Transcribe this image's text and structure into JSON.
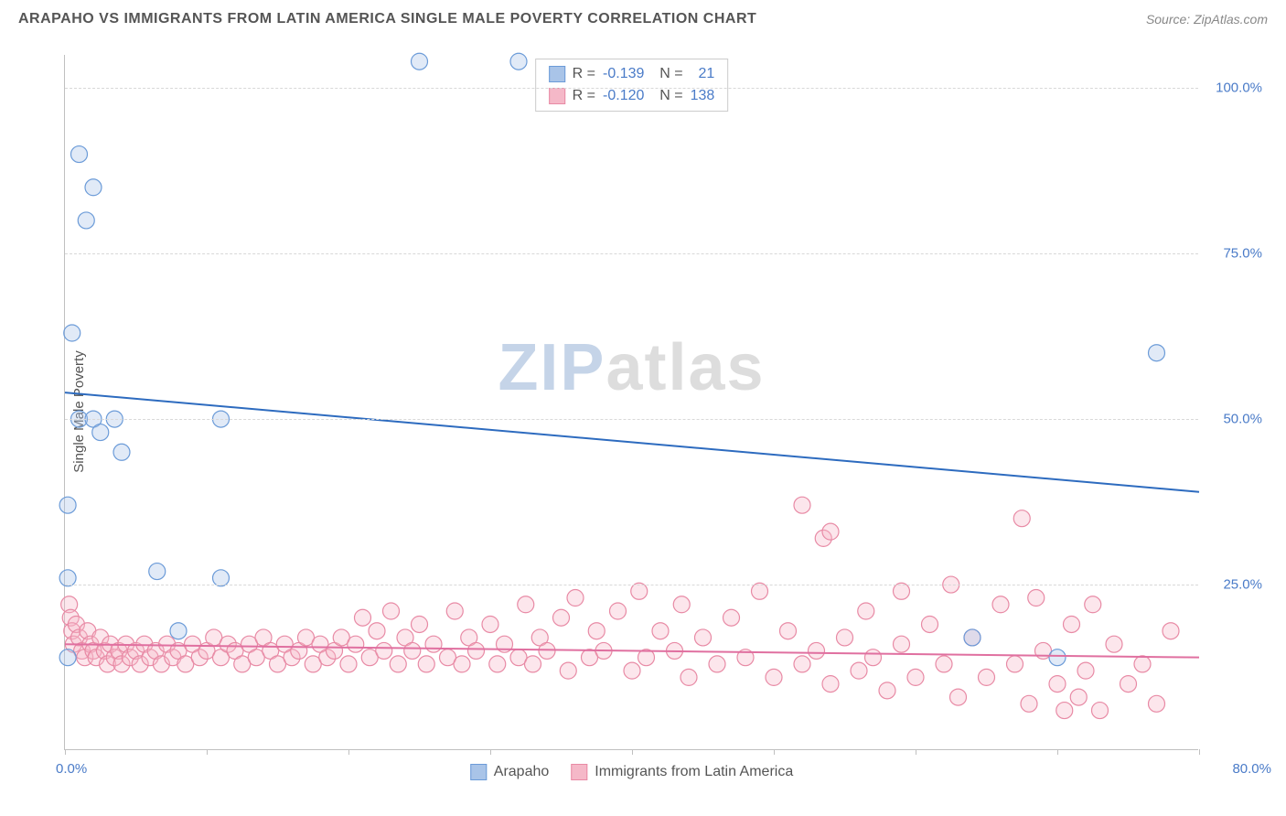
{
  "header": {
    "title": "ARAPAHO VS IMMIGRANTS FROM LATIN AMERICA SINGLE MALE POVERTY CORRELATION CHART",
    "source": "Source: ZipAtlas.com"
  },
  "chart": {
    "type": "scatter",
    "y_axis_label": "Single Male Poverty",
    "watermark_prefix": "ZIP",
    "watermark_suffix": "atlas",
    "background_color": "#ffffff",
    "grid_color": "#d8d8d8",
    "axis_color": "#c0c0c0",
    "tick_label_color": "#4a7bc8",
    "xlim": [
      0,
      80
    ],
    "ylim": [
      0,
      105
    ],
    "x_ticks": [
      0,
      10,
      20,
      30,
      40,
      50,
      60,
      70,
      80
    ],
    "x_tick_labels": {
      "0": "0.0%",
      "80": "80.0%"
    },
    "y_gridlines": [
      25,
      50,
      75,
      100
    ],
    "y_tick_labels": {
      "25": "25.0%",
      "50": "50.0%",
      "75": "75.0%",
      "100": "100.0%"
    },
    "marker_radius": 9,
    "marker_stroke_width": 1.2,
    "marker_fill_opacity": 0.35,
    "trendline_width": 2,
    "series": [
      {
        "name": "Arapaho",
        "fill_color": "#a9c4e8",
        "stroke_color": "#6b9bd8",
        "line_color": "#2d6bbf",
        "R": "-0.139",
        "N": "21",
        "trendline": {
          "x1": 0,
          "y1": 54,
          "x2": 80,
          "y2": 39
        },
        "points": [
          {
            "x": 1.0,
            "y": 90
          },
          {
            "x": 2.0,
            "y": 85
          },
          {
            "x": 1.5,
            "y": 80
          },
          {
            "x": 0.5,
            "y": 63
          },
          {
            "x": 25,
            "y": 104
          },
          {
            "x": 32,
            "y": 104
          },
          {
            "x": 1.0,
            "y": 50
          },
          {
            "x": 2.0,
            "y": 50
          },
          {
            "x": 2.5,
            "y": 48
          },
          {
            "x": 3.5,
            "y": 50
          },
          {
            "x": 4.0,
            "y": 45
          },
          {
            "x": 11,
            "y": 50
          },
          {
            "x": 0.2,
            "y": 37
          },
          {
            "x": 6.5,
            "y": 27
          },
          {
            "x": 11,
            "y": 26
          },
          {
            "x": 0.2,
            "y": 26
          },
          {
            "x": 8,
            "y": 18
          },
          {
            "x": 0.2,
            "y": 14
          },
          {
            "x": 64,
            "y": 17
          },
          {
            "x": 70,
            "y": 14
          },
          {
            "x": 77,
            "y": 60
          }
        ]
      },
      {
        "name": "Immigrants from Latin America",
        "fill_color": "#f5b8c8",
        "stroke_color": "#e88aa5",
        "line_color": "#e070a0",
        "R": "-0.120",
        "N": "138",
        "trendline": {
          "x1": 0,
          "y1": 16,
          "x2": 80,
          "y2": 14
        },
        "points": [
          {
            "x": 0.3,
            "y": 22
          },
          {
            "x": 0.4,
            "y": 20
          },
          {
            "x": 0.5,
            "y": 18
          },
          {
            "x": 0.6,
            "y": 16
          },
          {
            "x": 0.8,
            "y": 19
          },
          {
            "x": 1.0,
            "y": 17
          },
          {
            "x": 1.2,
            "y": 15
          },
          {
            "x": 1.4,
            "y": 14
          },
          {
            "x": 1.6,
            "y": 18
          },
          {
            "x": 1.8,
            "y": 16
          },
          {
            "x": 2.0,
            "y": 15
          },
          {
            "x": 2.2,
            "y": 14
          },
          {
            "x": 2.5,
            "y": 17
          },
          {
            "x": 2.8,
            "y": 15
          },
          {
            "x": 3.0,
            "y": 13
          },
          {
            "x": 3.2,
            "y": 16
          },
          {
            "x": 3.5,
            "y": 14
          },
          {
            "x": 3.8,
            "y": 15
          },
          {
            "x": 4.0,
            "y": 13
          },
          {
            "x": 4.3,
            "y": 16
          },
          {
            "x": 4.6,
            "y": 14
          },
          {
            "x": 5.0,
            "y": 15
          },
          {
            "x": 5.3,
            "y": 13
          },
          {
            "x": 5.6,
            "y": 16
          },
          {
            "x": 6.0,
            "y": 14
          },
          {
            "x": 6.4,
            "y": 15
          },
          {
            "x": 6.8,
            "y": 13
          },
          {
            "x": 7.2,
            "y": 16
          },
          {
            "x": 7.6,
            "y": 14
          },
          {
            "x": 8.0,
            "y": 15
          },
          {
            "x": 8.5,
            "y": 13
          },
          {
            "x": 9.0,
            "y": 16
          },
          {
            "x": 9.5,
            "y": 14
          },
          {
            "x": 10,
            "y": 15
          },
          {
            "x": 10.5,
            "y": 17
          },
          {
            "x": 11,
            "y": 14
          },
          {
            "x": 11.5,
            "y": 16
          },
          {
            "x": 12,
            "y": 15
          },
          {
            "x": 12.5,
            "y": 13
          },
          {
            "x": 13,
            "y": 16
          },
          {
            "x": 13.5,
            "y": 14
          },
          {
            "x": 14,
            "y": 17
          },
          {
            "x": 14.5,
            "y": 15
          },
          {
            "x": 15,
            "y": 13
          },
          {
            "x": 15.5,
            "y": 16
          },
          {
            "x": 16,
            "y": 14
          },
          {
            "x": 16.5,
            "y": 15
          },
          {
            "x": 17,
            "y": 17
          },
          {
            "x": 17.5,
            "y": 13
          },
          {
            "x": 18,
            "y": 16
          },
          {
            "x": 18.5,
            "y": 14
          },
          {
            "x": 19,
            "y": 15
          },
          {
            "x": 19.5,
            "y": 17
          },
          {
            "x": 20,
            "y": 13
          },
          {
            "x": 20.5,
            "y": 16
          },
          {
            "x": 21,
            "y": 20
          },
          {
            "x": 21.5,
            "y": 14
          },
          {
            "x": 22,
            "y": 18
          },
          {
            "x": 22.5,
            "y": 15
          },
          {
            "x": 23,
            "y": 21
          },
          {
            "x": 23.5,
            "y": 13
          },
          {
            "x": 24,
            "y": 17
          },
          {
            "x": 24.5,
            "y": 15
          },
          {
            "x": 25,
            "y": 19
          },
          {
            "x": 25.5,
            "y": 13
          },
          {
            "x": 26,
            "y": 16
          },
          {
            "x": 27,
            "y": 14
          },
          {
            "x": 27.5,
            "y": 21
          },
          {
            "x": 28,
            "y": 13
          },
          {
            "x": 28.5,
            "y": 17
          },
          {
            "x": 29,
            "y": 15
          },
          {
            "x": 30,
            "y": 19
          },
          {
            "x": 30.5,
            "y": 13
          },
          {
            "x": 31,
            "y": 16
          },
          {
            "x": 32,
            "y": 14
          },
          {
            "x": 32.5,
            "y": 22
          },
          {
            "x": 33,
            "y": 13
          },
          {
            "x": 33.5,
            "y": 17
          },
          {
            "x": 34,
            "y": 15
          },
          {
            "x": 35,
            "y": 20
          },
          {
            "x": 35.5,
            "y": 12
          },
          {
            "x": 36,
            "y": 23
          },
          {
            "x": 37,
            "y": 14
          },
          {
            "x": 37.5,
            "y": 18
          },
          {
            "x": 38,
            "y": 15
          },
          {
            "x": 39,
            "y": 21
          },
          {
            "x": 40,
            "y": 12
          },
          {
            "x": 40.5,
            "y": 24
          },
          {
            "x": 41,
            "y": 14
          },
          {
            "x": 42,
            "y": 18
          },
          {
            "x": 43,
            "y": 15
          },
          {
            "x": 43.5,
            "y": 22
          },
          {
            "x": 44,
            "y": 11
          },
          {
            "x": 45,
            "y": 17
          },
          {
            "x": 46,
            "y": 13
          },
          {
            "x": 47,
            "y": 20
          },
          {
            "x": 48,
            "y": 14
          },
          {
            "x": 49,
            "y": 24
          },
          {
            "x": 50,
            "y": 11
          },
          {
            "x": 51,
            "y": 18
          },
          {
            "x": 52,
            "y": 37
          },
          {
            "x": 52,
            "y": 13
          },
          {
            "x": 53,
            "y": 15
          },
          {
            "x": 53.5,
            "y": 32
          },
          {
            "x": 54,
            "y": 33
          },
          {
            "x": 54,
            "y": 10
          },
          {
            "x": 55,
            "y": 17
          },
          {
            "x": 56,
            "y": 12
          },
          {
            "x": 56.5,
            "y": 21
          },
          {
            "x": 57,
            "y": 14
          },
          {
            "x": 58,
            "y": 9
          },
          {
            "x": 59,
            "y": 24
          },
          {
            "x": 59,
            "y": 16
          },
          {
            "x": 60,
            "y": 11
          },
          {
            "x": 61,
            "y": 19
          },
          {
            "x": 62,
            "y": 13
          },
          {
            "x": 62.5,
            "y": 25
          },
          {
            "x": 63,
            "y": 8
          },
          {
            "x": 64,
            "y": 17
          },
          {
            "x": 65,
            "y": 11
          },
          {
            "x": 66,
            "y": 22
          },
          {
            "x": 67,
            "y": 13
          },
          {
            "x": 67.5,
            "y": 35
          },
          {
            "x": 68,
            "y": 7
          },
          {
            "x": 68.5,
            "y": 23
          },
          {
            "x": 69,
            "y": 15
          },
          {
            "x": 70,
            "y": 10
          },
          {
            "x": 70.5,
            "y": 6
          },
          {
            "x": 71,
            "y": 19
          },
          {
            "x": 71.5,
            "y": 8
          },
          {
            "x": 72,
            "y": 12
          },
          {
            "x": 72.5,
            "y": 22
          },
          {
            "x": 73,
            "y": 6
          },
          {
            "x": 74,
            "y": 16
          },
          {
            "x": 75,
            "y": 10
          },
          {
            "x": 76,
            "y": 13
          },
          {
            "x": 77,
            "y": 7
          },
          {
            "x": 78,
            "y": 18
          }
        ]
      }
    ]
  }
}
